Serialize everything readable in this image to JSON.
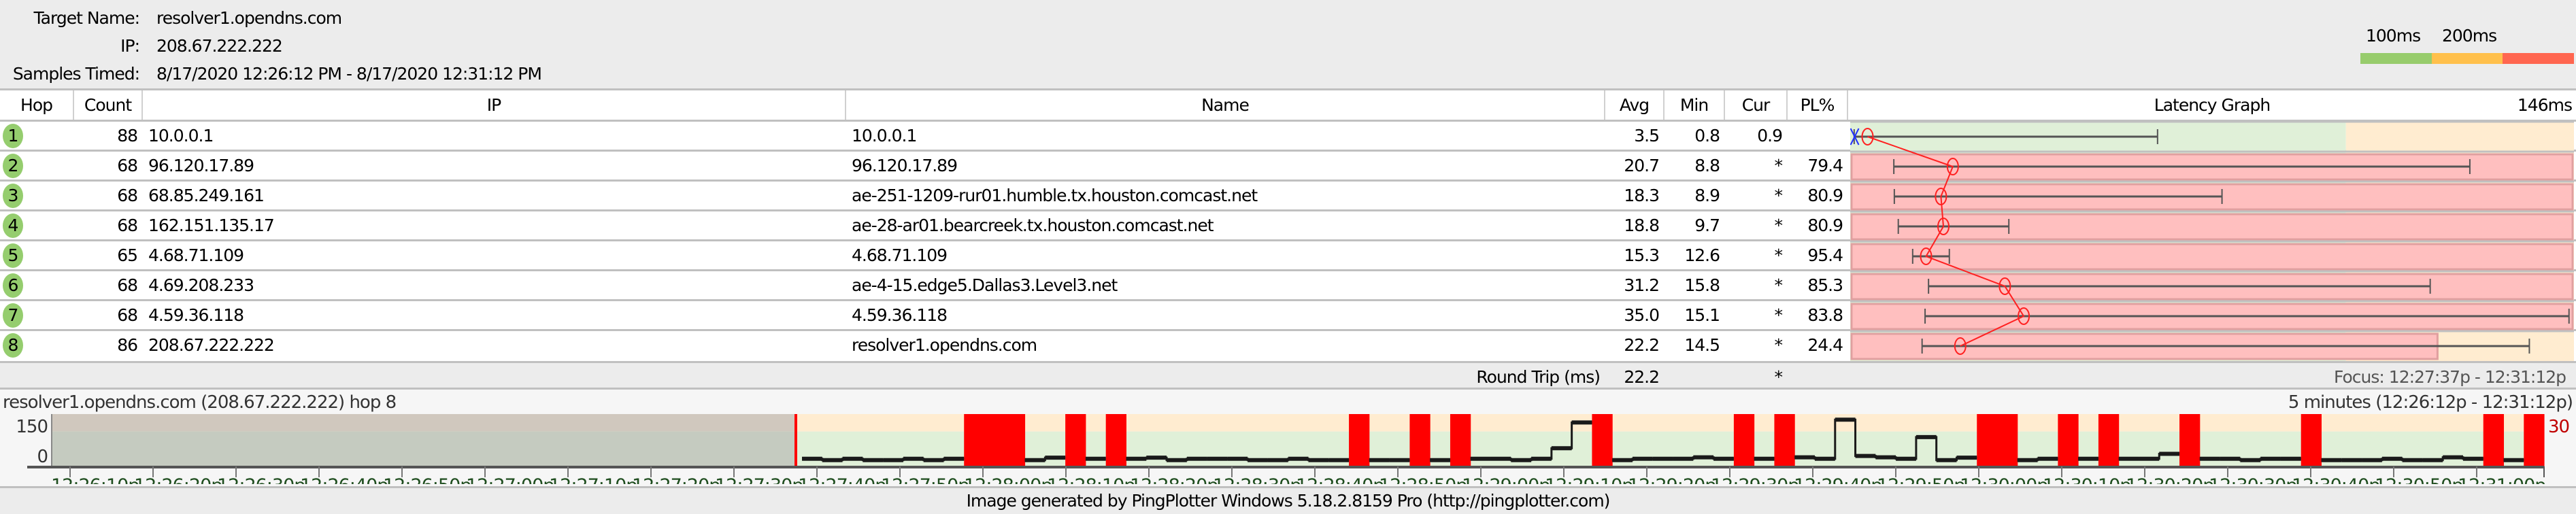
{
  "header": {
    "target_name_label": "Target Name:",
    "target_name": "resolver1.opendns.com",
    "ip_label": "IP:",
    "ip": "208.67.222.222",
    "samples_label": "Samples Timed:",
    "samples": "8/17/2020 12:26:12 PM - 8/17/2020 12:31:12 PM"
  },
  "legend": {
    "label_100": "100ms",
    "label_200": "200ms",
    "colors": [
      "#97cc6c",
      "#ffc04c",
      "#ff6650"
    ]
  },
  "columns": {
    "hop": "Hop",
    "count": "Count",
    "ip": "IP",
    "name": "Name",
    "avg": "Avg",
    "min": "Min",
    "cur": "Cur",
    "pl": "PL%",
    "graph": "Latency Graph",
    "graph_scale": "146ms"
  },
  "graph_scale_ms": 146,
  "graph_threshold_ms": 100,
  "pl_scale_pct": 30,
  "hops": [
    {
      "hop": "1",
      "count": "88",
      "ip": "10.0.0.1",
      "name": "10.0.0.1",
      "avg": "3.5",
      "min": "0.8",
      "cur": "0.9",
      "pl": "",
      "max_ms": 62
    },
    {
      "hop": "2",
      "count": "68",
      "ip": "96.120.17.89",
      "name": "96.120.17.89",
      "avg": "20.7",
      "min": "8.8",
      "cur": "*",
      "pl": "79.4",
      "max_ms": 125
    },
    {
      "hop": "3",
      "count": "68",
      "ip": "68.85.249.161",
      "name": "ae-251-1209-rur01.humble.tx.houston.comcast.net",
      "avg": "18.3",
      "min": "8.9",
      "cur": "*",
      "pl": "80.9",
      "max_ms": 75
    },
    {
      "hop": "4",
      "count": "68",
      "ip": "162.151.135.17",
      "name": "ae-28-ar01.bearcreek.tx.houston.comcast.net",
      "avg": "18.8",
      "min": "9.7",
      "cur": "*",
      "pl": "80.9",
      "max_ms": 32
    },
    {
      "hop": "5",
      "count": "65",
      "ip": "4.68.71.109",
      "name": "4.68.71.109",
      "avg": "15.3",
      "min": "12.6",
      "cur": "*",
      "pl": "95.4",
      "max_ms": 20
    },
    {
      "hop": "6",
      "count": "68",
      "ip": "4.69.208.233",
      "name": "ae-4-15.edge5.Dallas3.Level3.net",
      "avg": "31.2",
      "min": "15.8",
      "cur": "*",
      "pl": "85.3",
      "max_ms": 117
    },
    {
      "hop": "7",
      "count": "68",
      "ip": "4.59.36.118",
      "name": "4.59.36.118",
      "avg": "35.0",
      "min": "15.1",
      "cur": "*",
      "pl": "83.8",
      "max_ms": 145
    },
    {
      "hop": "8",
      "count": "86",
      "ip": "208.67.222.222",
      "name": "resolver1.opendns.com",
      "avg": "22.2",
      "min": "14.5",
      "cur": "*",
      "pl": "24.4",
      "max_ms": 137
    }
  ],
  "round_trip": {
    "label": "Round Trip (ms)",
    "avg": "22.2",
    "cur": "*",
    "focus": "Focus: 12:27:37p - 12:31:12p"
  },
  "timeline": {
    "title": "resolver1.opendns.com (208.67.222.222) hop 8",
    "range_label": "5 minutes (12:26:12p - 12:31:12p)",
    "y_max_label": "150",
    "y_min_label": "0",
    "pl_scale_label": "30",
    "y_range_ms": [
      0,
      150
    ],
    "focus_start": "12:27:37",
    "focus_end": "12:31:12",
    "ticks": [
      "12:26:10p",
      "12:26:20p",
      "12:26:30p",
      "12:26:40p",
      "12:26:50p",
      "12:27:00p",
      "12:27:10p",
      "12:27:20p",
      "12:27:30p",
      "12:27:40p",
      "12:27:50p",
      "12:28:00p",
      "12:28:10p",
      "12:28:20p",
      "12:28:30p",
      "12:28:40p",
      "12:28:50p",
      "12:29:00p",
      "12:29:10p",
      "12:29:20p",
      "12:29:30p",
      "12:29:40p",
      "12:29:50p",
      "12:30:00p",
      "12:30:10p",
      "12:30:20p",
      "12:30:30p",
      "12:30:40p",
      "12:30:50p",
      "12:31:00p"
    ],
    "samples_ms": [
      22,
      18,
      22,
      18,
      18,
      22,
      18,
      22,
      null,
      null,
      null,
      18,
      25,
      null,
      22,
      null,
      22,
      25,
      18,
      22,
      22,
      22,
      18,
      18,
      22,
      18,
      18,
      null,
      18,
      18,
      null,
      18,
      null,
      22,
      22,
      18,
      22,
      52,
      126,
      null,
      18,
      22,
      22,
      22,
      26,
      22,
      null,
      22,
      null,
      26,
      22,
      134,
      30,
      26,
      22,
      84,
      18,
      25,
      null,
      null,
      18,
      22,
      null,
      22,
      null,
      22,
      22,
      36,
      null,
      22,
      22,
      18,
      22,
      22,
      null,
      18,
      18,
      18,
      22,
      18,
      18,
      26,
      22,
      null,
      18,
      null
    ],
    "colors": {
      "loss": "#ff0000",
      "good": "#e0f0d8",
      "warn": "#ffecd0",
      "line": "#1a1a1a",
      "tick_text": "#1e4d1e"
    }
  },
  "footer": "Image generated by PingPlotter Windows 5.18.2.8159 Pro (http://pingplotter.com)"
}
